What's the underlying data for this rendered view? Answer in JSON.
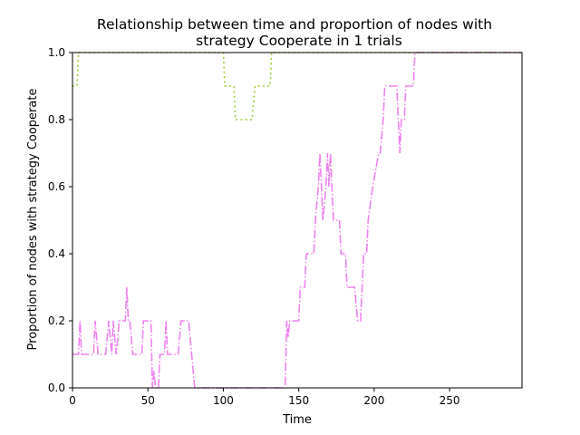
{
  "chart_data": {
    "type": "line",
    "title_lines": [
      "Relationship between time and proportion of nodes with",
      "strategy Cooperate in 1 trials"
    ],
    "xlabel": "Time",
    "ylabel": "Proportion of nodes with strategy Cooperate",
    "xlim": [
      0,
      298
    ],
    "ylim": [
      0,
      1.0
    ],
    "xticks": [
      0,
      50,
      100,
      150,
      200,
      250
    ],
    "yticks": [
      0.0,
      0.2,
      0.4,
      0.6,
      0.8,
      1.0
    ],
    "grid": false,
    "series": [
      {
        "color": "#ee82ee",
        "dash": "dashdot",
        "points": [
          [
            0,
            0.1
          ],
          [
            4,
            0.1
          ],
          [
            5,
            0.2
          ],
          [
            6,
            0.1
          ],
          [
            14,
            0.1
          ],
          [
            15,
            0.2
          ],
          [
            17,
            0.1
          ],
          [
            22,
            0.1
          ],
          [
            24,
            0.2
          ],
          [
            26,
            0.1
          ],
          [
            27,
            0.2
          ],
          [
            29,
            0.1
          ],
          [
            31,
            0.2
          ],
          [
            33,
            0.2
          ],
          [
            35,
            0.2
          ],
          [
            36,
            0.3
          ],
          [
            37,
            0.2
          ],
          [
            38,
            0.2
          ],
          [
            40,
            0.1
          ],
          [
            46,
            0.1
          ],
          [
            47,
            0.2
          ],
          [
            52,
            0.2
          ],
          [
            53,
            0.0
          ],
          [
            54,
            0.05
          ],
          [
            55,
            0.0
          ],
          [
            57,
            0.0
          ],
          [
            58,
            0.1
          ],
          [
            61,
            0.1
          ],
          [
            62,
            0.2
          ],
          [
            63,
            0.1
          ],
          [
            68,
            0.1
          ],
          [
            70,
            0.1
          ],
          [
            72,
            0.2
          ],
          [
            77,
            0.2
          ],
          [
            79,
            0.1
          ],
          [
            80,
            0.05
          ],
          [
            81,
            0.0
          ],
          [
            141,
            0.0
          ],
          [
            142,
            0.2
          ],
          [
            143,
            0.15
          ],
          [
            144,
            0.2
          ],
          [
            150,
            0.2
          ],
          [
            151,
            0.3
          ],
          [
            154,
            0.3
          ],
          [
            155,
            0.4
          ],
          [
            160,
            0.4
          ],
          [
            161,
            0.5
          ],
          [
            163,
            0.6
          ],
          [
            164,
            0.7
          ],
          [
            165,
            0.6
          ],
          [
            166,
            0.5
          ],
          [
            168,
            0.6
          ],
          [
            169,
            0.7
          ],
          [
            170,
            0.6
          ],
          [
            171,
            0.7
          ],
          [
            172,
            0.6
          ],
          [
            173,
            0.5
          ],
          [
            177,
            0.5
          ],
          [
            178,
            0.4
          ],
          [
            181,
            0.4
          ],
          [
            182,
            0.3
          ],
          [
            187,
            0.3
          ],
          [
            189,
            0.2
          ],
          [
            191,
            0.2
          ],
          [
            192,
            0.3
          ],
          [
            193,
            0.4
          ],
          [
            195,
            0.4
          ],
          [
            196,
            0.5
          ],
          [
            199,
            0.6
          ],
          [
            203,
            0.7
          ],
          [
            204,
            0.7
          ],
          [
            206,
            0.8
          ],
          [
            207,
            0.9
          ],
          [
            215,
            0.9
          ],
          [
            216,
            0.8
          ],
          [
            217,
            0.7
          ],
          [
            218,
            0.8
          ],
          [
            220,
            0.8
          ],
          [
            221,
            0.9
          ],
          [
            226,
            0.9
          ],
          [
            227,
            1.0
          ],
          [
            298,
            1.0
          ]
        ]
      },
      {
        "color": "#9acd32",
        "dash": "dotted",
        "points": [
          [
            0,
            0.9
          ],
          [
            3,
            0.9
          ],
          [
            4,
            1.0
          ],
          [
            100,
            1.0
          ],
          [
            101,
            0.9
          ],
          [
            107,
            0.9
          ],
          [
            108,
            0.8
          ],
          [
            119,
            0.8
          ],
          [
            121,
            0.9
          ],
          [
            131,
            0.9
          ],
          [
            132,
            1.0
          ],
          [
            298,
            1.0
          ]
        ]
      }
    ]
  }
}
